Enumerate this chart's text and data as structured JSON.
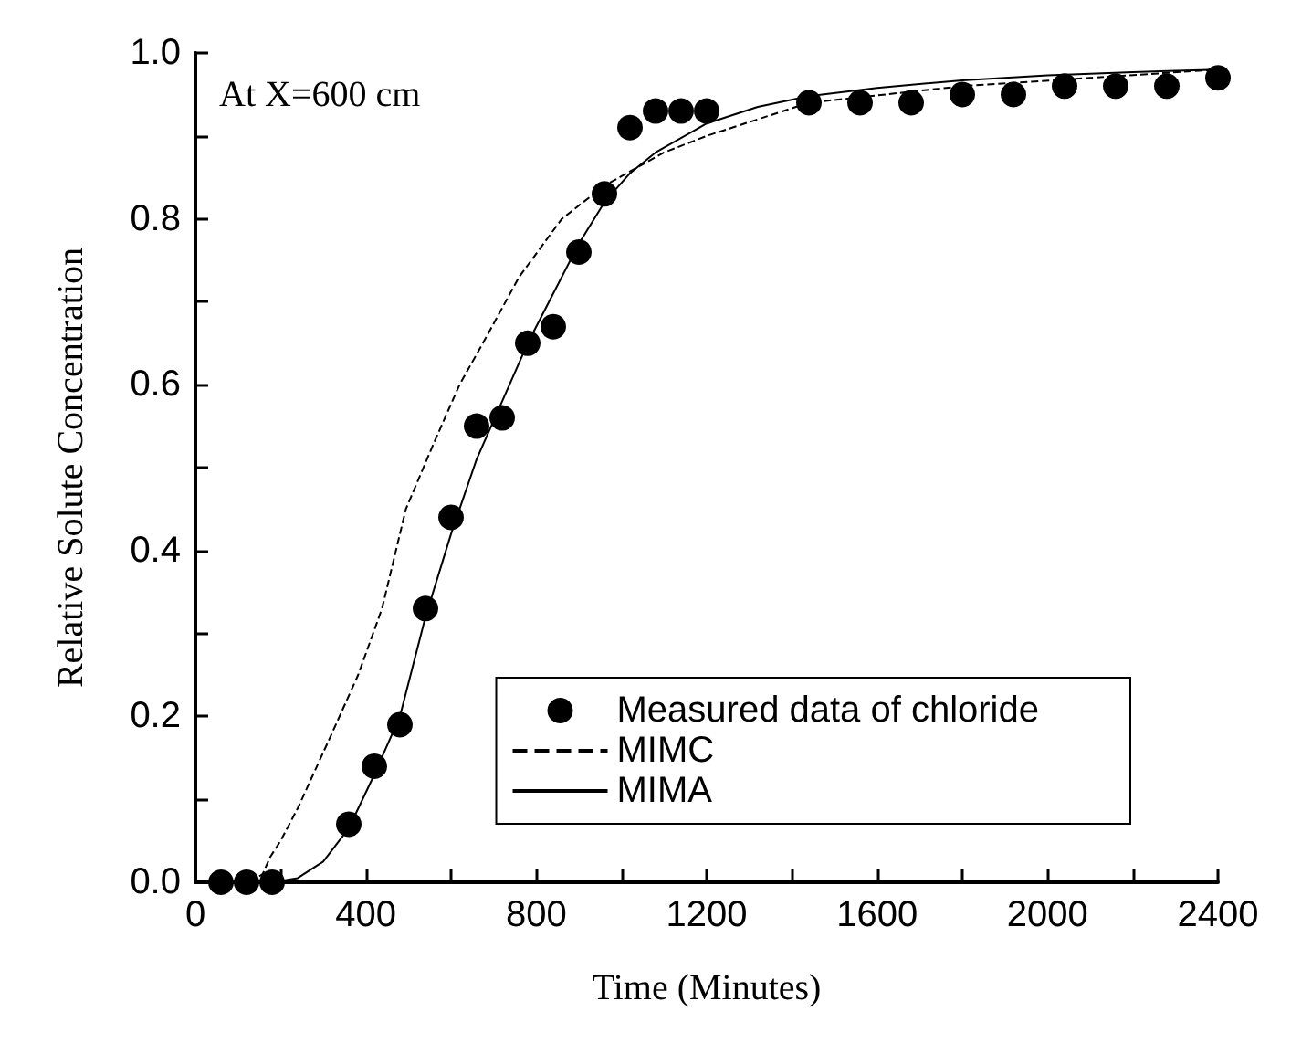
{
  "chart_data": {
    "type": "scatter",
    "xlabel": "Time (Minutes)",
    "ylabel": "Relative Solute Concentration",
    "annotations": [
      "At X=600 cm"
    ],
    "xlim": [
      0,
      2400
    ],
    "ylim": [
      0,
      1
    ],
    "xticks": [
      0,
      {
        "value": 200,
        "label": null
      },
      400,
      {
        "value": 600,
        "label": null
      },
      800,
      {
        "value": 1000,
        "label": null
      },
      1200,
      {
        "value": 1400,
        "label": null
      },
      1600,
      {
        "value": 1800,
        "label": null
      },
      2000,
      {
        "value": 2200,
        "label": null
      },
      2400
    ],
    "yticks": [
      {
        "value": 0,
        "label": "0.0"
      },
      {
        "value": 0.1,
        "label": null
      },
      0.2,
      {
        "value": 0.3,
        "label": null
      },
      0.4,
      {
        "value": 0.5,
        "label": null
      },
      0.6,
      {
        "value": 0.7,
        "label": null
      },
      0.8,
      {
        "value": 0.9,
        "label": null
      },
      {
        "value": 1,
        "label": "1.0"
      }
    ],
    "grid": false,
    "legend": "bottom right",
    "series": [
      {
        "name": "Measured data of chloride",
        "marker": "circle",
        "color": "#000000",
        "x": [
          60,
          120,
          180,
          360,
          420,
          480,
          540,
          600,
          660,
          720,
          780,
          840,
          900,
          960,
          1020,
          1080,
          1140,
          1200,
          1440,
          1560,
          1680,
          1800,
          1920,
          2040,
          2160,
          2280,
          2400
        ],
        "values": [
          0,
          0,
          0,
          0.07,
          0.14,
          0.19,
          0.33,
          0.44,
          0.55,
          0.56,
          0.65,
          0.67,
          0.76,
          0.83,
          0.91,
          0.93,
          0.93,
          0.93,
          0.94,
          0.94,
          0.94,
          0.95,
          0.95,
          0.96,
          0.96,
          0.96,
          0.97
        ]
      },
      {
        "name": "MIMC",
        "type": "line",
        "marker": "none",
        "line_style": "dashed",
        "color": "#000000",
        "x": [
          0,
          130,
          158,
          175,
          200,
          241,
          312,
          382,
          438,
          494,
          560,
          620,
          680,
          760,
          860,
          960,
          1100,
          1200,
          1440,
          1800,
          2100,
          2400
        ],
        "values": [
          0,
          0,
          0.01,
          0.03,
          0.05,
          0.09,
          0.17,
          0.25,
          0.33,
          0.45,
          0.53,
          0.6,
          0.655,
          0.73,
          0.8,
          0.84,
          0.88,
          0.9,
          0.94,
          0.96,
          0.97,
          0.98
        ]
      },
      {
        "name": "MIMA",
        "type": "line",
        "marker": "none",
        "line_style": "solid",
        "color": "#000000",
        "x": [
          0,
          180,
          240,
          300,
          360,
          420,
          480,
          540,
          600,
          660,
          720,
          780,
          840,
          900,
          960,
          1020,
          1080,
          1200,
          1320,
          1440,
          1600,
          1800,
          2000,
          2200,
          2400
        ],
        "values": [
          0,
          0,
          0.005,
          0.025,
          0.065,
          0.13,
          0.2,
          0.32,
          0.42,
          0.51,
          0.58,
          0.65,
          0.71,
          0.77,
          0.82,
          0.855,
          0.88,
          0.915,
          0.935,
          0.948,
          0.958,
          0.967,
          0.973,
          0.977,
          0.98
        ]
      }
    ]
  }
}
